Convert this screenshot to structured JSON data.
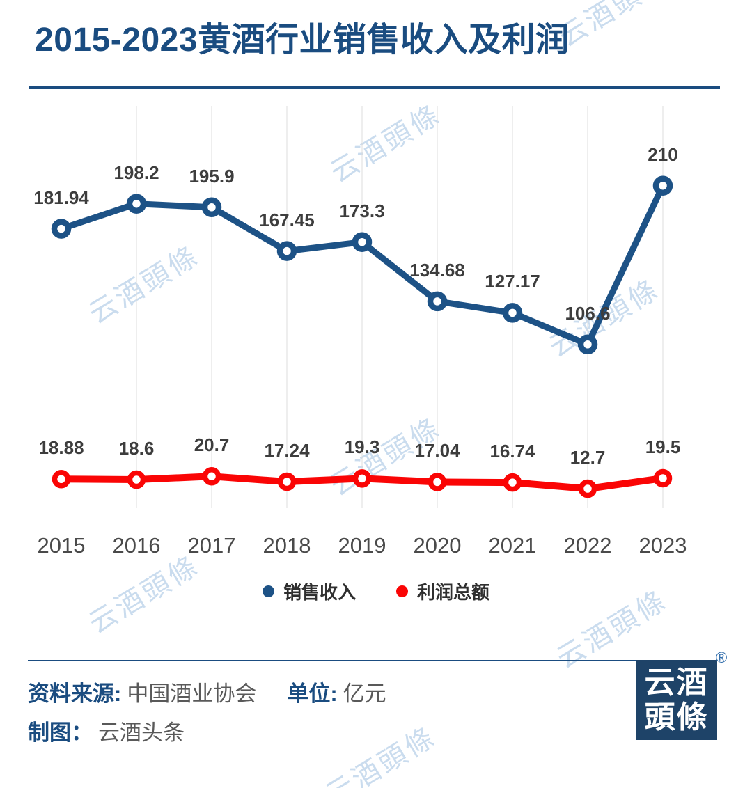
{
  "title": {
    "text": "2015-2023黄酒行业销售收入及利润"
  },
  "chart_data": {
    "type": "line",
    "categories": [
      "2015",
      "2016",
      "2017",
      "2018",
      "2019",
      "2020",
      "2021",
      "2022",
      "2023"
    ],
    "series": [
      {
        "name": "销售收入",
        "color": "#1d5286",
        "values": [
          181.94,
          198.2,
          195.9,
          167.45,
          173.3,
          134.68,
          127.17,
          106.6,
          210
        ]
      },
      {
        "name": "利润总额",
        "color": "#fa0505",
        "values": [
          18.88,
          18.6,
          20.7,
          17.24,
          19.3,
          17.04,
          16.74,
          12.7,
          19.5
        ]
      }
    ],
    "title": "2015-2023黄酒行业销售收入及利润",
    "xlabel": "",
    "ylabel": "",
    "unit": "亿元",
    "ylim": [
      0,
      262
    ],
    "grid": "vertical-only",
    "yaxis_visible": false,
    "data_labels": true,
    "legend_position": "bottom"
  },
  "footer": {
    "source_label": "资料来源:",
    "source_value": "中国酒业协会",
    "unit_label": "单位:",
    "unit_value": "亿元",
    "credit_label": "制图：",
    "credit_value": "云酒头条"
  },
  "logo": {
    "line1": "云酒",
    "line2": "頭條",
    "registered_mark": "®"
  },
  "watermark": {
    "text": "云酒頭條"
  },
  "colors": {
    "title_blue": "#1a4c80",
    "revenue_blue": "#1d5286",
    "profit_red": "#fa0505",
    "gridline": "#dcdcdc",
    "data_label": "#3d3d3d",
    "axis_label": "#4a4a4a",
    "footer_gray": "#595959",
    "logo_navy": "#1e4368",
    "watermark_blue": "#bdd4eb"
  }
}
